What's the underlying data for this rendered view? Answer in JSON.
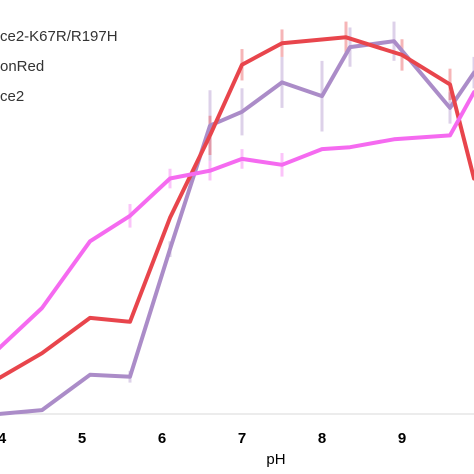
{
  "chart_data": {
    "type": "line",
    "xlabel": "pH",
    "ylabel": "",
    "title": "",
    "xlim": [
      3.95,
      9.9
    ],
    "ylim": [
      0,
      1.055
    ],
    "x_ticks": [
      "4",
      "5",
      "6",
      "7",
      "8",
      "9"
    ],
    "legend_position": "top-left",
    "grid": false,
    "series": [
      {
        "name": "ce2-K67R/R197H",
        "color": "#ab8cc8",
        "points": [
          {
            "x": 3.95,
            "y": 0.0
          },
          {
            "x": 4.5,
            "y": 0.01
          },
          {
            "x": 5.1,
            "y": 0.1
          },
          {
            "x": 5.6,
            "y": 0.095
          },
          {
            "x": 6.1,
            "y": 0.42
          },
          {
            "x": 6.6,
            "y": 0.735
          },
          {
            "x": 7.0,
            "y": 0.77
          },
          {
            "x": 7.5,
            "y": 0.845
          },
          {
            "x": 8.0,
            "y": 0.81
          },
          {
            "x": 8.35,
            "y": 0.935
          },
          {
            "x": 8.9,
            "y": 0.95
          },
          {
            "x": 9.6,
            "y": 0.78
          },
          {
            "x": 9.9,
            "y": 0.87
          }
        ],
        "errors": [
          0.0,
          0.0,
          0.0,
          0.015,
          0.02,
          0.09,
          0.06,
          0.065,
          0.09,
          0.05,
          0.05,
          0.04,
          0.04
        ]
      },
      {
        "name": "onRed",
        "color": "#e8454c",
        "points": [
          {
            "x": 3.95,
            "y": 0.09
          },
          {
            "x": 4.5,
            "y": 0.155
          },
          {
            "x": 5.1,
            "y": 0.245
          },
          {
            "x": 5.6,
            "y": 0.235
          },
          {
            "x": 6.1,
            "y": 0.5
          },
          {
            "x": 6.6,
            "y": 0.71
          },
          {
            "x": 7.0,
            "y": 0.89
          },
          {
            "x": 7.5,
            "y": 0.945
          },
          {
            "x": 8.3,
            "y": 0.96
          },
          {
            "x": 9.0,
            "y": 0.915
          },
          {
            "x": 9.6,
            "y": 0.84
          },
          {
            "x": 9.9,
            "y": 0.6
          }
        ],
        "errors": [
          0.0,
          0.0,
          0.0,
          0.0,
          0.0,
          0.05,
          0.04,
          0.035,
          0.04,
          0.04,
          0.04,
          0.0
        ]
      },
      {
        "name": "ce2",
        "color": "#f56af0",
        "points": [
          {
            "x": 3.95,
            "y": 0.165
          },
          {
            "x": 4.5,
            "y": 0.27
          },
          {
            "x": 5.1,
            "y": 0.44
          },
          {
            "x": 5.6,
            "y": 0.505
          },
          {
            "x": 6.1,
            "y": 0.6
          },
          {
            "x": 6.6,
            "y": 0.62
          },
          {
            "x": 7.0,
            "y": 0.65
          },
          {
            "x": 7.5,
            "y": 0.635
          },
          {
            "x": 8.0,
            "y": 0.675
          },
          {
            "x": 8.35,
            "y": 0.68
          },
          {
            "x": 8.9,
            "y": 0.7
          },
          {
            "x": 9.6,
            "y": 0.71
          },
          {
            "x": 9.9,
            "y": 0.82
          }
        ],
        "errors": [
          0.0,
          0.0,
          0.0,
          0.03,
          0.025,
          0.025,
          0.025,
          0.03,
          0.0,
          0.0,
          0.0,
          0.0,
          0.0
        ]
      }
    ]
  }
}
